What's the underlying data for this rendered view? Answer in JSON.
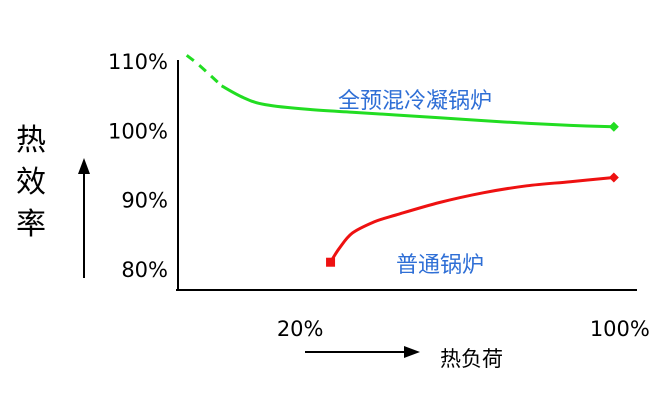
{
  "chart_data": {
    "type": "line",
    "title": "",
    "xlabel": "热负荷",
    "ylabel": "热效率",
    "x_tick_labels": [
      {
        "x": 20,
        "label": "20%"
      },
      {
        "x": 100,
        "label": "100%"
      }
    ],
    "y_tick_labels": [
      {
        "y": 110,
        "label": "110%"
      },
      {
        "y": 100,
        "label": "100%"
      },
      {
        "y": 90,
        "label": "90%"
      },
      {
        "y": 80,
        "label": "80%"
      }
    ],
    "xlim": [
      0,
      106
    ],
    "ylim": [
      77,
      113
    ],
    "grid": false,
    "series": [
      {
        "name": "全预混冷凝锅炉",
        "color": "#22dd22",
        "end_marker": "diamond",
        "dashed_until_x": 10,
        "points": [
          [
            2,
            110.8
          ],
          [
            5,
            109.3
          ],
          [
            10,
            106.4
          ],
          [
            15,
            104.7
          ],
          [
            20,
            103.7
          ],
          [
            30,
            103.0
          ],
          [
            40,
            102.6
          ],
          [
            50,
            102.2
          ],
          [
            60,
            101.8
          ],
          [
            70,
            101.4
          ],
          [
            80,
            101.0
          ],
          [
            90,
            100.7
          ],
          [
            100,
            100.5
          ]
        ]
      },
      {
        "name": "普通锅炉",
        "color": "#ee1111",
        "start_marker": "square",
        "end_marker": "diamond",
        "points": [
          [
            35,
            81.0
          ],
          [
            37,
            83.0
          ],
          [
            40,
            85.2
          ],
          [
            45,
            86.8
          ],
          [
            50,
            87.8
          ],
          [
            60,
            89.6
          ],
          [
            70,
            91.0
          ],
          [
            80,
            92.0
          ],
          [
            90,
            92.6
          ],
          [
            100,
            93.2
          ]
        ]
      }
    ]
  }
}
